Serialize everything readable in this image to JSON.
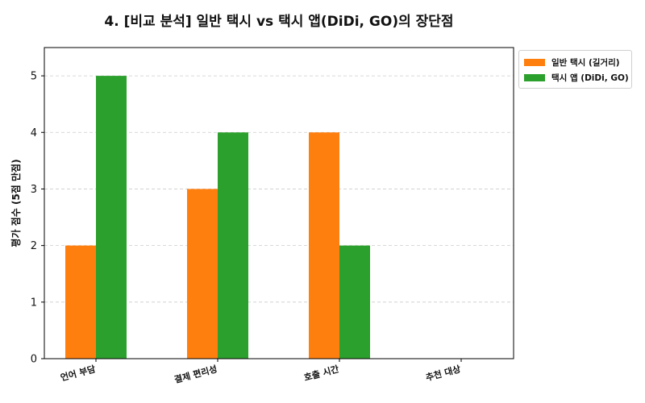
{
  "title": "4. [비교 분석] 일반 택시 vs 택시 앱(DiDi, GO)의 장단점",
  "chart_data": {
    "type": "bar",
    "title": "4. [비교 분석] 일반 택시 vs 택시 앱(DiDi, GO)의 장단점",
    "xlabel": "",
    "ylabel": "평가 점수 (5점 만점)",
    "categories": [
      "언어 부담",
      "결제 편리성",
      "호출 시간",
      "추천 대상"
    ],
    "series": [
      {
        "name": "일반 택시 (길거리)",
        "color": "#ff7f0e",
        "values": [
          2,
          3,
          4,
          0
        ]
      },
      {
        "name": "택시 앱 (DiDi, GO)",
        "color": "#2ca02c",
        "values": [
          5,
          4,
          2,
          0
        ]
      }
    ],
    "ylim": [
      0,
      5.5
    ],
    "yticks": [
      0,
      1,
      2,
      3,
      4,
      5
    ],
    "grid": true,
    "grid_axis": "y",
    "legend_position": "outside-top-right"
  }
}
